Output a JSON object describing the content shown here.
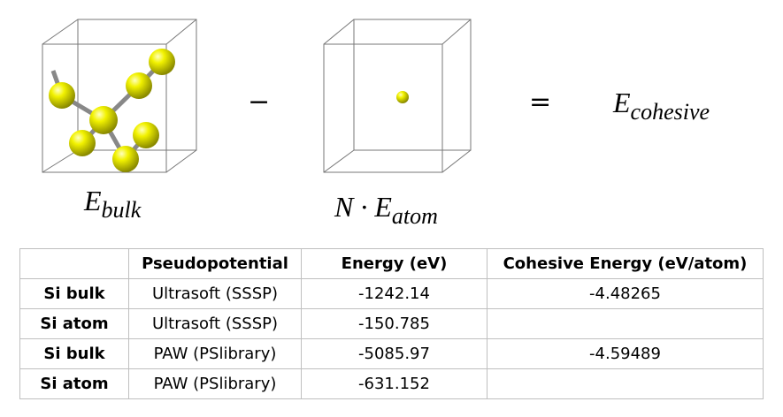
{
  "formula": {
    "bulk": {
      "symbol": "E",
      "subscript": "bulk"
    },
    "minus": "−",
    "atom": {
      "symbol": "N · E",
      "subscript": "atom"
    },
    "equals": "=",
    "cohesive": {
      "symbol": "E",
      "subscript": "cohesive"
    }
  },
  "table": {
    "header": [
      "Pseudopotential",
      "Energy (eV)",
      "Cohesive Energy (eV/atom)"
    ],
    "rows": [
      [
        "Si bulk",
        "Ultrasoft (SSSP)",
        "-1242.14",
        "-4.48265"
      ],
      [
        "Si atom",
        "Ultrasoft (SSSP)",
        "-150.785"
      ],
      [
        "Si bulk",
        "PAW (PSlibrary)",
        "-5085.97",
        "-4.59489"
      ],
      [
        "Si atom",
        "PAW (PSlibrary)",
        "-631.152"
      ]
    ]
  }
}
